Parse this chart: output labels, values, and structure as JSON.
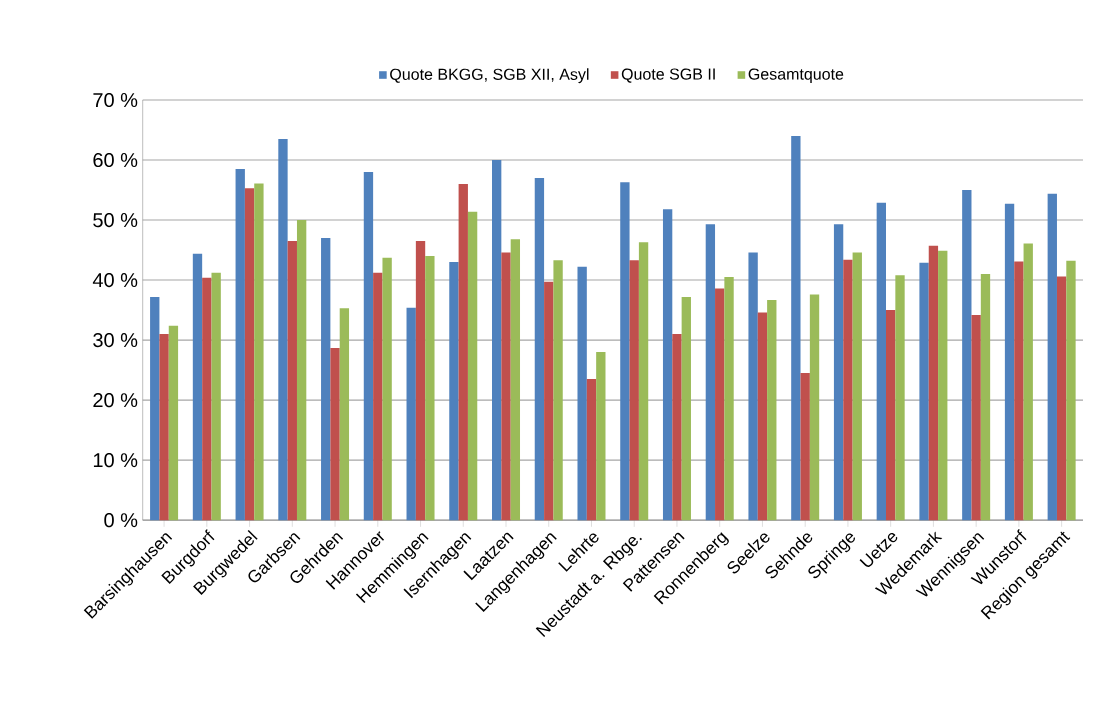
{
  "chart_data": {
    "type": "bar",
    "categories": [
      "Barsinghausen",
      "Burgdorf",
      "Burgwedel",
      "Garbsen",
      "Gehrden",
      "Hannover",
      "Hemmingen",
      "Isernhagen",
      "Laatzen",
      "Langenhagen",
      "Lehrte",
      "Neustadt a. Rbge.",
      "Pattensen",
      "Ronnenberg",
      "Seelze",
      "Sehnde",
      "Springe",
      "Uetze",
      "Wedemark",
      "Wennigsen",
      "Wunstorf",
      "Region gesamt"
    ],
    "series": [
      {
        "name": "Quote BKGG, SGB XII, Asyl",
        "color": "#4f81bd",
        "values": [
          37.2,
          44.4,
          58.5,
          63.5,
          47,
          58,
          35.4,
          43,
          60,
          57,
          42.2,
          56.3,
          51.8,
          49.3,
          44.6,
          64,
          49.3,
          52.9,
          42.9,
          55,
          52.7,
          54.4
        ]
      },
      {
        "name": "Quote SGB II",
        "color": "#c0504d",
        "values": [
          31,
          40.4,
          55.3,
          46.5,
          28.7,
          41.2,
          46.5,
          56,
          44.6,
          39.7,
          23.5,
          43.3,
          31,
          38.6,
          34.6,
          24.5,
          43.4,
          35,
          45.7,
          34.2,
          43.1,
          40.6
        ]
      },
      {
        "name": "Gesamtquote",
        "color": "#9bbb59",
        "values": [
          32.4,
          41.2,
          56.1,
          50,
          35.3,
          43.7,
          44,
          51.4,
          46.8,
          43.3,
          28,
          46.3,
          37.2,
          40.5,
          36.7,
          37.6,
          44.6,
          40.8,
          44.9,
          41,
          46.1,
          43.2
        ]
      }
    ],
    "ylim": [
      0,
      70
    ],
    "yticks": [
      {
        "value": 0,
        "label": "0 %"
      },
      {
        "value": 10,
        "label": "10 %"
      },
      {
        "value": 20,
        "label": "20 %"
      },
      {
        "value": 30,
        "label": "30 %"
      },
      {
        "value": 40,
        "label": "40 %"
      },
      {
        "value": 50,
        "label": "50 %"
      },
      {
        "value": 60,
        "label": "60 %"
      },
      {
        "value": 70,
        "label": "70 %"
      }
    ],
    "grid": "y",
    "legend": "top"
  }
}
